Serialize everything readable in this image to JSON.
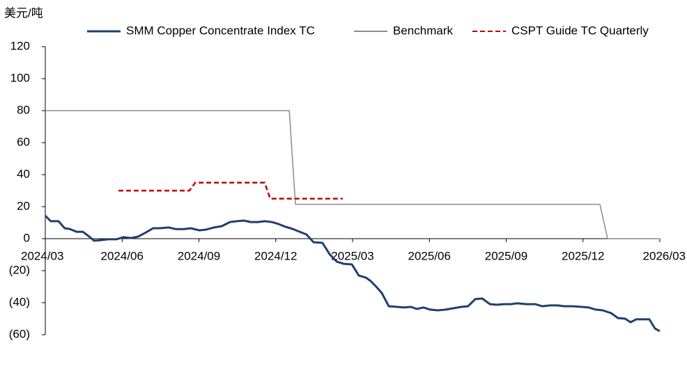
{
  "chart_data": {
    "type": "line",
    "y_unit_label": "美元/吨",
    "xlim": [
      2024.167,
      2026.167
    ],
    "xticks": [
      {
        "value": 2024.167,
        "label": "2024/03"
      },
      {
        "value": 2024.417,
        "label": "2024/06"
      },
      {
        "value": 2024.667,
        "label": "2024/09"
      },
      {
        "value": 2024.917,
        "label": "2024/12"
      },
      {
        "value": 2025.167,
        "label": "2025/03"
      },
      {
        "value": 2025.417,
        "label": "2025/06"
      },
      {
        "value": 2025.667,
        "label": "2025/09"
      },
      {
        "value": 2025.917,
        "label": "2025/12"
      },
      {
        "value": 2026.167,
        "label": "2026/03"
      }
    ],
    "ylim": [
      -60,
      120
    ],
    "yticks": [
      {
        "value": -60,
        "label": "(60)"
      },
      {
        "value": -40,
        "label": "(40)"
      },
      {
        "value": -20,
        "label": "(20)"
      },
      0,
      20,
      40,
      60,
      80,
      100,
      120
    ],
    "negative_tick_color": "#c00000",
    "grid": false,
    "legend": "top",
    "series": [
      {
        "name": "SMM Copper Concentrate Index TC",
        "color": "#1f3f6e",
        "dash": "solid",
        "x": [
          2024.167,
          2024.185,
          2024.21,
          2024.23,
          2024.246,
          2024.269,
          2024.289,
          2024.31,
          2024.326,
          2024.348,
          2024.371,
          2024.398,
          2024.421,
          2024.446,
          2024.469,
          2024.491,
          2024.518,
          2024.541,
          2024.568,
          2024.591,
          2024.618,
          2024.641,
          2024.668,
          2024.689,
          2024.716,
          2024.741,
          2024.768,
          2024.791,
          2024.813,
          2024.836,
          2024.859,
          2024.881,
          2024.904,
          2024.927,
          2024.949,
          2024.972,
          2024.995,
          2025.017,
          2025.04,
          2025.069,
          2025.092,
          2025.115,
          2025.138,
          2025.165,
          2025.187,
          2025.21,
          2025.226,
          2025.244,
          2025.262,
          2025.285,
          2025.312,
          2025.335,
          2025.357,
          2025.376,
          2025.398,
          2025.419,
          2025.444,
          2025.471,
          2025.494,
          2025.521,
          2025.543,
          2025.566,
          2025.589,
          2025.614,
          2025.636,
          2025.659,
          2025.682,
          2025.704,
          2025.732,
          2025.761,
          2025.784,
          2025.811,
          2025.834,
          2025.856,
          2025.884,
          2025.911,
          2025.936,
          2025.958,
          2025.981,
          2026.008,
          2026.031,
          2026.054,
          2026.072,
          2026.09,
          2026.113,
          2026.133,
          2026.151,
          2026.167
        ],
        "values": [
          14.3,
          10.9,
          10.9,
          6.5,
          6.1,
          4.3,
          4.3,
          1.3,
          -1.3,
          -0.9,
          -0.4,
          -0.4,
          0.9,
          0.4,
          1.3,
          3.5,
          6.5,
          6.5,
          7,
          6,
          6,
          6.5,
          5.2,
          5.6,
          7,
          7.8,
          10.4,
          10.9,
          11.3,
          10.4,
          10.4,
          10.9,
          10.4,
          9.1,
          7.4,
          6.1,
          4.3,
          2.6,
          -2.2,
          -2.6,
          -9.6,
          -14.3,
          -15.7,
          -16.1,
          -23,
          -24.3,
          -26.5,
          -30,
          -33.9,
          -42.2,
          -42.6,
          -43,
          -42.6,
          -43.9,
          -43,
          -44.3,
          -44.8,
          -44.3,
          -43.5,
          -42.6,
          -42.2,
          -37.8,
          -37.4,
          -40.9,
          -41.3,
          -40.9,
          -40.9,
          -40.4,
          -40.9,
          -40.9,
          -42.2,
          -41.7,
          -41.7,
          -42.2,
          -42.2,
          -42.6,
          -43,
          -44.3,
          -44.8,
          -46.5,
          -49.6,
          -50,
          -52.2,
          -50.4,
          -50.4,
          -50.4,
          -56.1,
          -57.8
        ]
      },
      {
        "name": "Benchmark",
        "color": "#8c8c8c",
        "dash": "solid",
        "x": [
          2024.167,
          2024.961,
          2024.981,
          2025.972,
          2025.997,
          2026.167
        ],
        "values": [
          80,
          80,
          21.5,
          21.5,
          0,
          0
        ]
      },
      {
        "name": "CSPT Guide TC Quarterly",
        "color": "#c00000",
        "dash": "dashed",
        "x": [
          2024.405,
          2024.636,
          2024.655,
          2024.881,
          2024.899,
          2025.135
        ],
        "values": [
          30,
          30,
          35,
          35,
          25,
          25
        ]
      }
    ]
  }
}
